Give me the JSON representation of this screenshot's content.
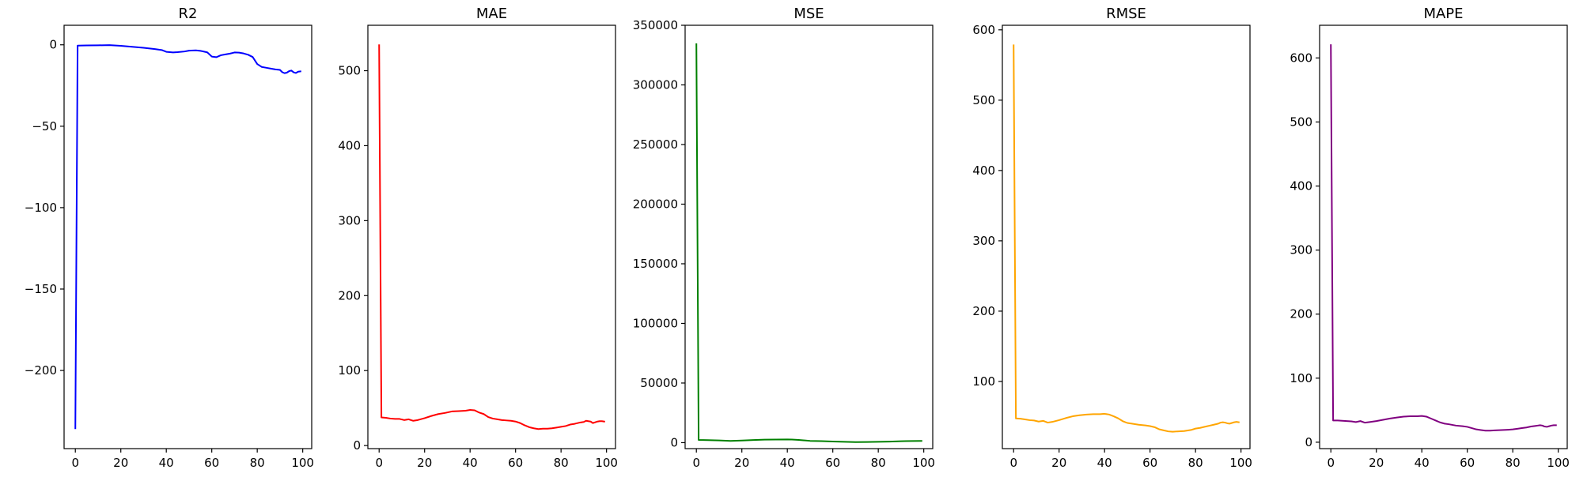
{
  "chart_data": [
    {
      "type": "line",
      "title": "R2",
      "xlabel": "",
      "ylabel": "",
      "color": "#0000ff",
      "xlim": [
        -4.95,
        103.95
      ],
      "ylim": [
        -248,
        12
      ],
      "xticks": [
        0,
        20,
        40,
        60,
        80,
        100
      ],
      "xtick_labels": [
        "0",
        "20",
        "40",
        "60",
        "80",
        "100"
      ],
      "yticks": [
        0,
        -50,
        -100,
        -150,
        -200
      ],
      "ytick_labels": [
        "0",
        "−50",
        "−100",
        "−150",
        "−200"
      ],
      "grid": false,
      "series": [
        {
          "x": [
            0,
            1,
            5,
            10,
            15,
            20,
            25,
            30,
            35,
            38,
            40,
            43,
            45,
            48,
            50,
            53,
            55,
            58,
            60,
            62,
            64,
            66,
            68,
            70,
            72,
            74,
            76,
            78,
            80,
            82,
            84,
            86,
            88,
            90,
            91,
            92,
            93,
            94,
            95,
            96,
            97,
            98,
            99
          ],
          "y": [
            -235.5,
            -0.5,
            -0.4,
            -0.3,
            -0.2,
            -0.6,
            -1.2,
            -1.8,
            -2.6,
            -3.2,
            -4.3,
            -4.7,
            -4.5,
            -4.1,
            -3.6,
            -3.4,
            -3.7,
            -4.6,
            -7.2,
            -7.6,
            -6.4,
            -5.9,
            -5.4,
            -4.7,
            -4.8,
            -5.3,
            -6.1,
            -7.5,
            -11.8,
            -13.6,
            -14.1,
            -14.6,
            -15.1,
            -15.4,
            -16.8,
            -17.4,
            -17.1,
            -16.2,
            -15.8,
            -16.9,
            -17.3,
            -16.5,
            -16.3
          ]
        }
      ]
    },
    {
      "type": "line",
      "title": "MAE",
      "xlabel": "",
      "ylabel": "",
      "color": "#ff0000",
      "xlim": [
        -4.95,
        103.95
      ],
      "ylim": [
        -4.1,
        560.6
      ],
      "xticks": [
        0,
        20,
        40,
        60,
        80,
        100
      ],
      "xtick_labels": [
        "0",
        "20",
        "40",
        "60",
        "80",
        "100"
      ],
      "yticks": [
        0,
        100,
        200,
        300,
        400,
        500
      ],
      "ytick_labels": [
        "0",
        "100",
        "200",
        "300",
        "400",
        "500"
      ],
      "grid": false,
      "series": [
        {
          "x": [
            0,
            1,
            3,
            5,
            7,
            9,
            11,
            13,
            15,
            17,
            20,
            23,
            26,
            29,
            32,
            35,
            38,
            40,
            42,
            44,
            46,
            48,
            50,
            52,
            54,
            56,
            58,
            60,
            62,
            64,
            66,
            68,
            70,
            72,
            74,
            76,
            78,
            80,
            82,
            84,
            86,
            88,
            90,
            91,
            92,
            93,
            94,
            95,
            96,
            97,
            98,
            99
          ],
          "y": [
            534,
            37.5,
            37,
            36,
            35.5,
            35.5,
            34,
            35,
            33,
            34,
            36.5,
            39.5,
            42,
            43.5,
            45.5,
            46,
            46.5,
            47.5,
            47,
            44,
            42,
            38,
            36,
            35,
            34,
            33.5,
            33,
            32,
            30,
            27,
            24.5,
            23,
            22,
            22.5,
            22.5,
            23,
            24,
            25,
            26,
            28,
            29,
            30.5,
            31.5,
            33,
            32.5,
            32,
            30,
            31,
            32,
            32.5,
            32.5,
            32
          ]
        }
      ]
    },
    {
      "type": "line",
      "title": "MSE",
      "xlabel": "",
      "ylabel": "",
      "color": "#008000",
      "xlim": [
        -4.95,
        103.95
      ],
      "ylim": [
        -5000,
        350000
      ],
      "xticks": [
        0,
        20,
        40,
        60,
        80,
        100
      ],
      "xtick_labels": [
        "0",
        "20",
        "40",
        "60",
        "80",
        "100"
      ],
      "yticks": [
        0,
        50000,
        100000,
        150000,
        200000,
        250000,
        300000,
        350000
      ],
      "ytick_labels": [
        "0",
        "50000",
        "100000",
        "150000",
        "200000",
        "250000",
        "300000",
        "350000"
      ],
      "grid": false,
      "series": [
        {
          "x": [
            0,
            1,
            5,
            10,
            15,
            20,
            25,
            30,
            35,
            40,
            42,
            45,
            50,
            55,
            60,
            65,
            70,
            75,
            80,
            85,
            90,
            95,
            99
          ],
          "y": [
            334200,
            2300,
            2100,
            1900,
            1500,
            1800,
            2200,
            2500,
            2600,
            2700,
            2650,
            2300,
            1500,
            1300,
            1000,
            700,
            500,
            550,
            700,
            900,
            1200,
            1400,
            1450
          ]
        }
      ]
    },
    {
      "type": "line",
      "title": "RMSE",
      "xlabel": "",
      "ylabel": "",
      "color": "#ffa500",
      "xlim": [
        -4.95,
        103.95
      ],
      "ylim": [
        4.5,
        606.5
      ],
      "xticks": [
        0,
        20,
        40,
        60,
        80,
        100
      ],
      "xtick_labels": [
        "0",
        "20",
        "40",
        "60",
        "80",
        "100"
      ],
      "yticks": [
        100,
        200,
        300,
        400,
        500,
        600
      ],
      "ytick_labels": [
        "100",
        "200",
        "300",
        "400",
        "500",
        "600"
      ],
      "grid": false,
      "series": [
        {
          "x": [
            0,
            1,
            3,
            5,
            7,
            9,
            11,
            13,
            15,
            17,
            20,
            23,
            26,
            29,
            32,
            35,
            38,
            40,
            42,
            44,
            46,
            48,
            50,
            52,
            55,
            58,
            60,
            62,
            64,
            66,
            68,
            70,
            72,
            75,
            78,
            80,
            82,
            84,
            86,
            88,
            90,
            91,
            92,
            93,
            94,
            95,
            96,
            97,
            98,
            99
          ],
          "y": [
            578,
            47.5,
            47,
            46,
            45,
            44.5,
            43,
            44,
            41.5,
            42.5,
            45,
            48,
            50.5,
            52,
            53,
            53.5,
            53.5,
            54,
            53,
            50.5,
            47.5,
            43.5,
            41,
            40,
            38.5,
            37.5,
            36.5,
            35,
            32,
            30.5,
            29,
            28.5,
            29,
            29.5,
            31,
            33,
            34,
            35.5,
            37,
            38.5,
            40,
            41.5,
            42,
            41.5,
            40.5,
            40,
            41,
            42,
            42.5,
            42
          ]
        }
      ]
    },
    {
      "type": "line",
      "title": "MAPE",
      "xlabel": "",
      "ylabel": "",
      "color": "#800080",
      "xlim": [
        -4.95,
        103.95
      ],
      "ylim": [
        -10,
        651
      ],
      "xticks": [
        0,
        20,
        40,
        60,
        80,
        100
      ],
      "xtick_labels": [
        "0",
        "20",
        "40",
        "60",
        "80",
        "100"
      ],
      "yticks": [
        0,
        100,
        200,
        300,
        400,
        500,
        600
      ],
      "ytick_labels": [
        "0",
        "100",
        "200",
        "300",
        "400",
        "500",
        "600"
      ],
      "grid": false,
      "series": [
        {
          "x": [
            0,
            1,
            3,
            5,
            7,
            9,
            11,
            13,
            15,
            17,
            20,
            23,
            26,
            29,
            32,
            35,
            38,
            40,
            42,
            44,
            46,
            48,
            50,
            52,
            55,
            58,
            60,
            62,
            64,
            66,
            68,
            70,
            72,
            75,
            78,
            80,
            82,
            84,
            86,
            88,
            90,
            91,
            92,
            93,
            94,
            95,
            96,
            97,
            98,
            99
          ],
          "y": [
            620,
            34,
            34,
            33.5,
            33,
            32.5,
            31.5,
            33,
            30.5,
            31.5,
            33,
            35,
            37,
            38.5,
            40,
            40.5,
            40.5,
            41,
            40,
            37,
            34,
            31,
            29,
            28,
            26,
            25,
            24,
            22,
            20,
            19,
            18,
            18,
            18.5,
            19,
            19.5,
            20,
            21,
            22,
            23,
            24.5,
            25.5,
            26,
            26.5,
            26,
            24.5,
            24,
            25,
            26,
            26.5,
            26.5
          ]
        }
      ]
    }
  ]
}
